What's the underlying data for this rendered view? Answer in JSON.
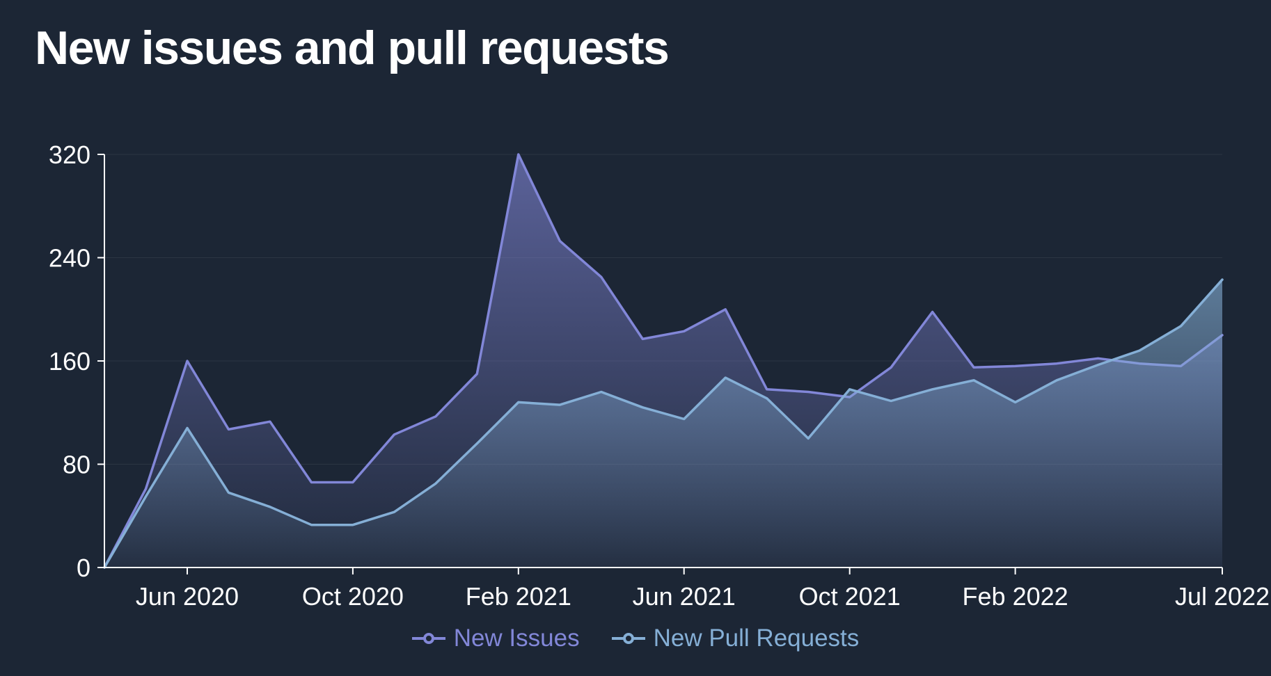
{
  "page": {
    "title": "New issues and pull requests",
    "background": "#1c2635"
  },
  "chart_data": {
    "type": "area",
    "title": "New issues and pull requests",
    "x": [
      "Apr 2020",
      "May 2020",
      "Jun 2020",
      "Jul 2020",
      "Aug 2020",
      "Sep 2020",
      "Oct 2020",
      "Nov 2020",
      "Dec 2020",
      "Jan 2021",
      "Feb 2021",
      "Mar 2021",
      "Apr 2021",
      "May 2021",
      "Jun 2021",
      "Jul 2021",
      "Aug 2021",
      "Sep 2021",
      "Oct 2021",
      "Nov 2021",
      "Dec 2021",
      "Jan 2022",
      "Feb 2022",
      "Mar 2022",
      "Apr 2022",
      "May 2022",
      "Jun 2022",
      "Jul 2022"
    ],
    "series": [
      {
        "name": "New Issues",
        "color": "#8287d8",
        "values": [
          0,
          61,
          160,
          107,
          113,
          66,
          66,
          103,
          117,
          150,
          320,
          253,
          225,
          177,
          183,
          200,
          138,
          136,
          132,
          155,
          198,
          155,
          156,
          158,
          162,
          158,
          156,
          180
        ]
      },
      {
        "name": "New Pull Requests",
        "color": "#85afd6",
        "values": [
          0,
          55,
          108,
          58,
          47,
          33,
          33,
          43,
          65,
          96,
          128,
          126,
          136,
          124,
          115,
          147,
          131,
          100,
          138,
          129,
          138,
          145,
          128,
          145,
          157,
          168,
          187,
          223
        ]
      }
    ],
    "xticks": [
      "Jun 2020",
      "Oct 2020",
      "Feb 2021",
      "Jun 2021",
      "Oct 2021",
      "Feb 2022",
      "Jul 2022"
    ],
    "yticks": [
      0,
      80,
      160,
      240,
      320
    ],
    "ylim": [
      0,
      320
    ],
    "xlabel": "",
    "ylabel": "",
    "grid": "faint-horizontal",
    "legend_position": "bottom",
    "axis_color": "#ffffff"
  }
}
